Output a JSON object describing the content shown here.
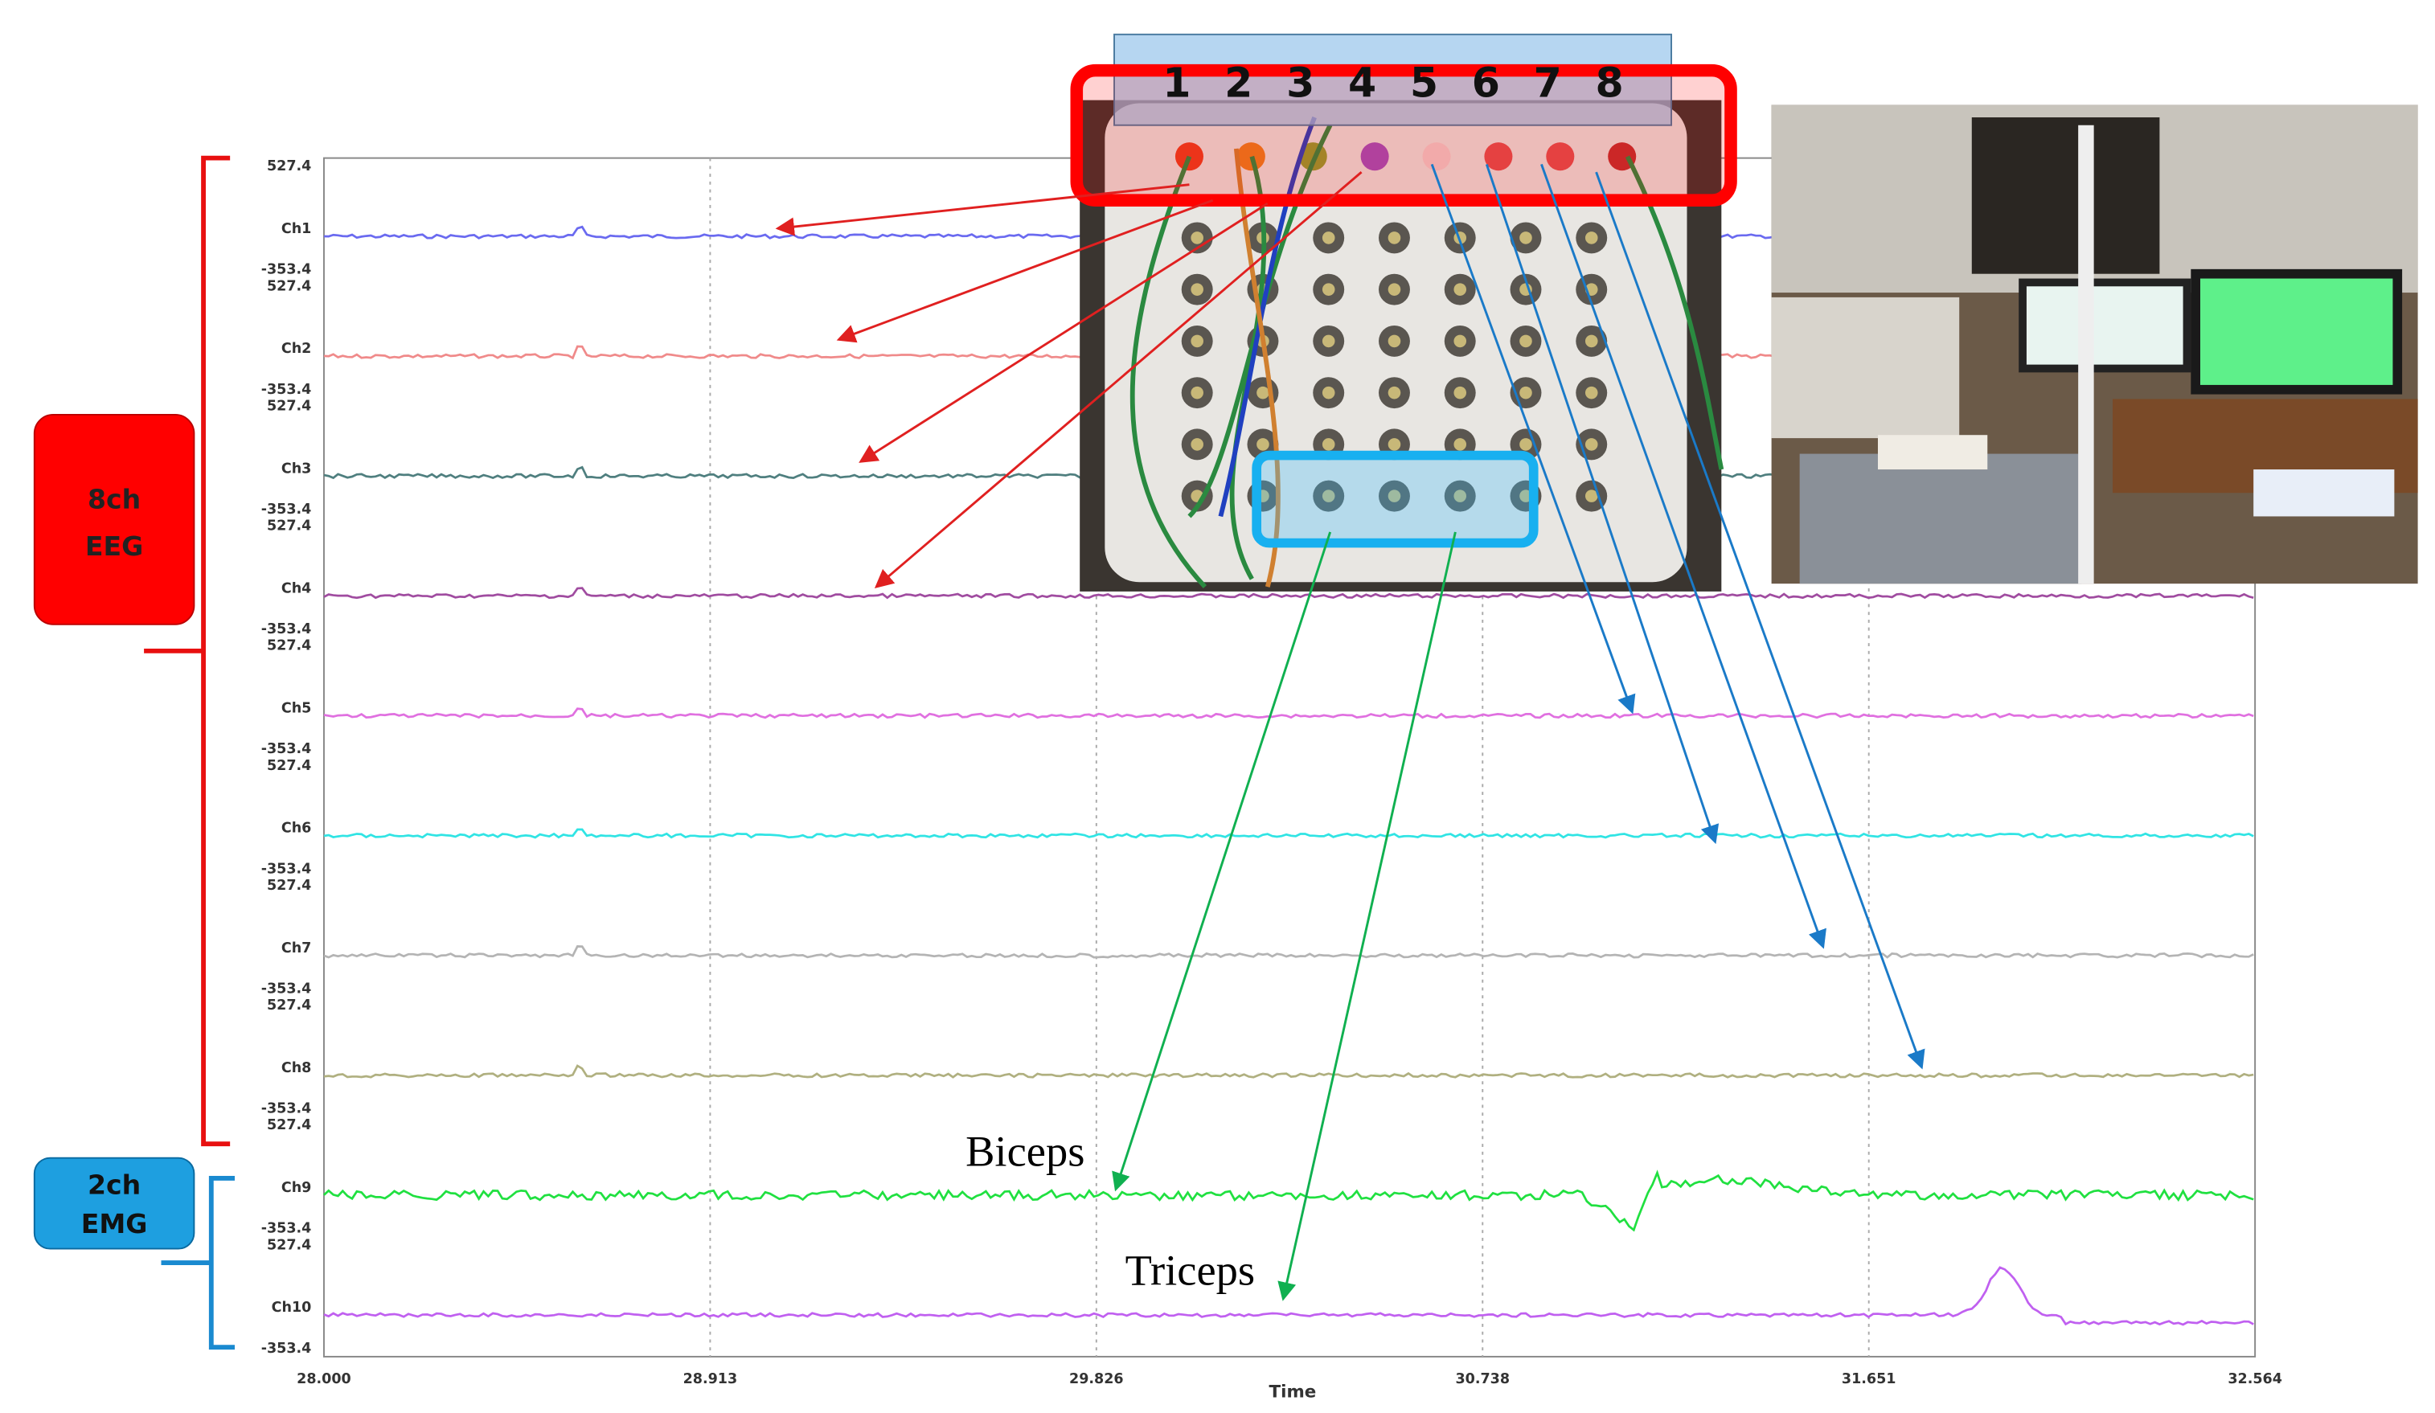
{
  "electrode_numbers": [
    "1",
    "2",
    "3",
    "4",
    "5",
    "6",
    "7",
    "8"
  ],
  "groups": {
    "eeg": [
      "8ch",
      "EEG"
    ],
    "emg": [
      "2ch",
      "EMG"
    ]
  },
  "channels": [
    {
      "name": "Ch1",
      "top": "527.4",
      "bottom": "-353.4"
    },
    {
      "name": "Ch2",
      "top": "527.4",
      "bottom": "-353.4"
    },
    {
      "name": "Ch3",
      "top": "527.4",
      "bottom": "-353.4"
    },
    {
      "name": "Ch4",
      "top": "527.4",
      "bottom": "-353.4"
    },
    {
      "name": "Ch5",
      "top": "527.4",
      "bottom": "-353.4"
    },
    {
      "name": "Ch6",
      "top": "527.4",
      "bottom": "-353.4"
    },
    {
      "name": "Ch7",
      "top": "527.4",
      "bottom": "-353.4"
    },
    {
      "name": "Ch8",
      "top": "527.4",
      "bottom": "-353.4"
    },
    {
      "name": "Ch9",
      "top": "527.4",
      "bottom": "-353.4"
    },
    {
      "name": "Ch10",
      "top": "527.4",
      "bottom": "-353.4"
    }
  ],
  "x_axis": {
    "ticks": [
      "28.000",
      "28.913",
      "29.826",
      "30.738",
      "31.651",
      "32.564"
    ],
    "label": "Time"
  },
  "muscles": [
    "Biceps",
    "Triceps"
  ]
}
